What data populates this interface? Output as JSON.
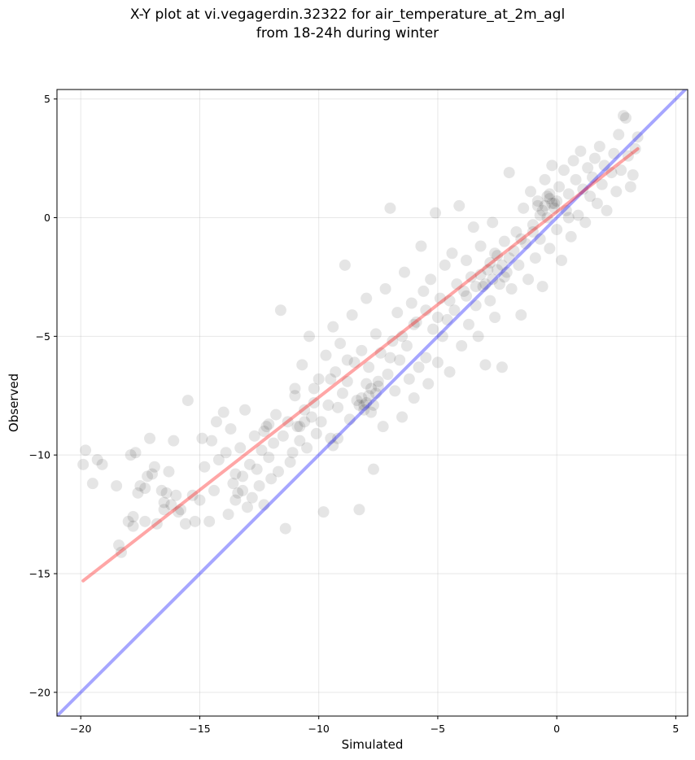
{
  "chart_data": {
    "type": "scatter",
    "title_line1": "X-Y plot at vi.vegagerdin.32322 for air_temperature_at_2m_agl",
    "title_line2": "from 18-24h during winter",
    "xlabel": "Simulated",
    "ylabel": "Observed",
    "xlim": [
      -21,
      5.5
    ],
    "ylim": [
      -21,
      5.4
    ],
    "xticks": [
      -20,
      -15,
      -10,
      -5,
      0,
      5
    ],
    "yticks": [
      -20,
      -15,
      -10,
      -5,
      0,
      5
    ],
    "xtick_labels": [
      "−20",
      "−15",
      "−10",
      "−5",
      "0",
      "5"
    ],
    "ytick_labels": [
      "−20",
      "−15",
      "−10",
      "−5",
      "0",
      "5"
    ],
    "grid": true,
    "point_color": "#000000",
    "point_alpha": 0.1,
    "regression_line": {
      "color": "#ff0000",
      "alpha": 0.35,
      "x": [
        -19.9,
        3.4
      ],
      "y": [
        -15.3,
        2.9
      ]
    },
    "identity_line": {
      "color": "#0000ff",
      "alpha": 0.35,
      "x": [
        -21,
        5.5
      ],
      "y": [
        -21,
        5.5
      ]
    },
    "points": [
      [
        -19.9,
        -10.4
      ],
      [
        -19.8,
        -9.8
      ],
      [
        -19.5,
        -11.2
      ],
      [
        -19.3,
        -10.2
      ],
      [
        -19.1,
        -10.4
      ],
      [
        -18.5,
        -11.3
      ],
      [
        -18.4,
        -13.8
      ],
      [
        -18.3,
        -14.1
      ],
      [
        -18.0,
        -12.8
      ],
      [
        -17.9,
        -10.0
      ],
      [
        -17.8,
        -12.6
      ],
      [
        -17.8,
        -13.0
      ],
      [
        -17.7,
        -9.9
      ],
      [
        -17.6,
        -11.6
      ],
      [
        -17.5,
        -11.3
      ],
      [
        -17.3,
        -12.8
      ],
      [
        -17.3,
        -11.4
      ],
      [
        -17.2,
        -10.9
      ],
      [
        -17.1,
        -9.3
      ],
      [
        -17.0,
        -10.8
      ],
      [
        -16.9,
        -10.5
      ],
      [
        -16.8,
        -12.9
      ],
      [
        -16.6,
        -11.5
      ],
      [
        -16.5,
        -12.0
      ],
      [
        -16.5,
        -12.3
      ],
      [
        -16.4,
        -11.6
      ],
      [
        -16.3,
        -10.7
      ],
      [
        -16.2,
        -12.1
      ],
      [
        -16.1,
        -9.4
      ],
      [
        -16.0,
        -11.7
      ],
      [
        -15.9,
        -12.4
      ],
      [
        -15.8,
        -12.3
      ],
      [
        -15.6,
        -12.9
      ],
      [
        -15.5,
        -7.7
      ],
      [
        -15.3,
        -11.7
      ],
      [
        -15.2,
        -12.8
      ],
      [
        -15.0,
        -11.9
      ],
      [
        -14.9,
        -9.3
      ],
      [
        -14.8,
        -10.5
      ],
      [
        -14.6,
        -12.8
      ],
      [
        -14.5,
        -9.4
      ],
      [
        -14.4,
        -11.5
      ],
      [
        -14.3,
        -8.6
      ],
      [
        -14.2,
        -10.2
      ],
      [
        -14.0,
        -8.2
      ],
      [
        -13.9,
        -9.9
      ],
      [
        -13.8,
        -12.5
      ],
      [
        -13.7,
        -8.9
      ],
      [
        -13.6,
        -11.2
      ],
      [
        -13.5,
        -10.8
      ],
      [
        -13.4,
        -11.6
      ],
      [
        -13.3,
        -9.7
      ],
      [
        -13.2,
        -10.9
      ],
      [
        -13.1,
        -8.1
      ],
      [
        -13.0,
        -12.2
      ],
      [
        -12.9,
        -10.4
      ],
      [
        -12.8,
        -11.8
      ],
      [
        -12.7,
        -9.2
      ],
      [
        -12.6,
        -10.6
      ],
      [
        -12.5,
        -11.3
      ],
      [
        -12.4,
        -9.8
      ],
      [
        -12.3,
        -12.1
      ],
      [
        -12.2,
        -8.8
      ],
      [
        -12.1,
        -10.1
      ],
      [
        -12.0,
        -11.0
      ],
      [
        -11.9,
        -9.5
      ],
      [
        -11.8,
        -8.3
      ],
      [
        -11.7,
        -10.7
      ],
      [
        -11.6,
        -3.9
      ],
      [
        -11.5,
        -9.2
      ],
      [
        -11.4,
        -13.1
      ],
      [
        -11.3,
        -8.6
      ],
      [
        -11.2,
        -10.3
      ],
      [
        -11.1,
        -9.9
      ],
      [
        -11.0,
        -7.5
      ],
      [
        -10.9,
        -8.8
      ],
      [
        -10.8,
        -9.4
      ],
      [
        -10.7,
        -6.2
      ],
      [
        -10.6,
        -8.1
      ],
      [
        -10.5,
        -9.7
      ],
      [
        -10.4,
        -5.0
      ],
      [
        -10.3,
        -8.4
      ],
      [
        -10.2,
        -7.2
      ],
      [
        -10.1,
        -9.1
      ],
      [
        -10.0,
        -6.8
      ],
      [
        -9.9,
        -8.6
      ],
      [
        -9.8,
        -12.4
      ],
      [
        -9.7,
        -5.8
      ],
      [
        -9.6,
        -7.9
      ],
      [
        -9.5,
        -9.3
      ],
      [
        -9.4,
        -4.6
      ],
      [
        -9.3,
        -6.5
      ],
      [
        -9.2,
        -8.0
      ],
      [
        -9.1,
        -5.3
      ],
      [
        -9.0,
        -7.4
      ],
      [
        -8.9,
        -2.0
      ],
      [
        -8.8,
        -6.9
      ],
      [
        -8.7,
        -8.5
      ],
      [
        -8.6,
        -4.1
      ],
      [
        -8.5,
        -6.1
      ],
      [
        -8.4,
        -7.7
      ],
      [
        -8.3,
        -12.3
      ],
      [
        -8.2,
        -5.6
      ],
      [
        -8.1,
        -7.9
      ],
      [
        -8.0,
        -3.4
      ],
      [
        -7.9,
        -6.3
      ],
      [
        -7.8,
        -8.2
      ],
      [
        -7.7,
        -10.6
      ],
      [
        -7.6,
        -4.9
      ],
      [
        -7.5,
        -7.1
      ],
      [
        -7.4,
        -5.7
      ],
      [
        -7.3,
        -8.8
      ],
      [
        -7.2,
        -3.0
      ],
      [
        -7.1,
        -6.6
      ],
      [
        -7.0,
        0.4
      ],
      [
        -6.9,
        -5.2
      ],
      [
        -6.8,
        -7.3
      ],
      [
        -6.7,
        -4.0
      ],
      [
        -6.6,
        -6.0
      ],
      [
        -6.5,
        -8.4
      ],
      [
        -6.4,
        -2.3
      ],
      [
        -6.3,
        -5.4
      ],
      [
        -6.2,
        -6.8
      ],
      [
        -6.1,
        -3.6
      ],
      [
        -6.0,
        -7.6
      ],
      [
        -5.9,
        -4.4
      ],
      [
        -5.8,
        -6.3
      ],
      [
        -5.7,
        -1.2
      ],
      [
        -5.6,
        -3.1
      ],
      [
        -5.5,
        -5.9
      ],
      [
        -5.4,
        -7.0
      ],
      [
        -5.3,
        -2.6
      ],
      [
        -5.2,
        -4.7
      ],
      [
        -5.1,
        0.2
      ],
      [
        -5.0,
        -6.1
      ],
      [
        -4.9,
        -3.4
      ],
      [
        -4.8,
        -5.0
      ],
      [
        -4.7,
        -2.0
      ],
      [
        -4.6,
        -4.3
      ],
      [
        -4.5,
        -6.5
      ],
      [
        -4.4,
        -1.5
      ],
      [
        -4.3,
        -3.9
      ],
      [
        -4.2,
        -2.8
      ],
      [
        -4.1,
        0.5
      ],
      [
        -4.0,
        -5.4
      ],
      [
        -3.9,
        -3.1
      ],
      [
        -3.8,
        -1.8
      ],
      [
        -3.7,
        -4.5
      ],
      [
        -3.6,
        -2.5
      ],
      [
        -3.5,
        -0.4
      ],
      [
        -3.4,
        -3.7
      ],
      [
        -3.3,
        -5.0
      ],
      [
        -3.2,
        -1.2
      ],
      [
        -3.1,
        -2.9
      ],
      [
        -3.0,
        -6.2
      ],
      [
        -2.9,
        -2.2
      ],
      [
        -2.8,
        -3.5
      ],
      [
        -2.7,
        -0.2
      ],
      [
        -2.6,
        -4.2
      ],
      [
        -2.5,
        -1.6
      ],
      [
        -2.4,
        -2.8
      ],
      [
        -2.3,
        -6.3
      ],
      [
        -2.2,
        -1.0
      ],
      [
        -2.1,
        -2.3
      ],
      [
        -2.0,
        1.9
      ],
      [
        -1.9,
        -3.0
      ],
      [
        -1.8,
        -1.4
      ],
      [
        -1.7,
        -0.6
      ],
      [
        -1.6,
        -2.0
      ],
      [
        -1.5,
        -4.1
      ],
      [
        -1.4,
        0.4
      ],
      [
        -1.3,
        -1.1
      ],
      [
        -1.2,
        -2.6
      ],
      [
        -1.1,
        1.1
      ],
      [
        -1.0,
        -0.3
      ],
      [
        -0.9,
        -1.7
      ],
      [
        -0.8,
        0.7
      ],
      [
        -0.7,
        -0.9
      ],
      [
        -0.6,
        -2.9
      ],
      [
        -0.5,
        1.6
      ],
      [
        -0.4,
        0.0
      ],
      [
        -0.3,
        -1.3
      ],
      [
        -0.2,
        2.2
      ],
      [
        -0.1,
        0.6
      ],
      [
        0.0,
        -0.5
      ],
      [
        0.1,
        1.3
      ],
      [
        0.2,
        -1.8
      ],
      [
        0.3,
        2.0
      ],
      [
        0.4,
        0.3
      ],
      [
        0.5,
        1.0
      ],
      [
        0.6,
        -0.8
      ],
      [
        0.7,
        2.4
      ],
      [
        0.8,
        1.6
      ],
      [
        0.9,
        0.1
      ],
      [
        1.0,
        2.8
      ],
      [
        1.1,
        1.2
      ],
      [
        1.2,
        -0.2
      ],
      [
        1.3,
        2.1
      ],
      [
        1.4,
        0.9
      ],
      [
        1.5,
        1.7
      ],
      [
        1.6,
        2.5
      ],
      [
        1.7,
        0.6
      ],
      [
        1.8,
        3.0
      ],
      [
        1.9,
        1.4
      ],
      [
        2.0,
        2.2
      ],
      [
        2.1,
        0.3
      ],
      [
        2.3,
        1.9
      ],
      [
        2.4,
        2.7
      ],
      [
        2.5,
        1.1
      ],
      [
        2.6,
        3.5
      ],
      [
        2.7,
        2.0
      ],
      [
        2.8,
        4.3
      ],
      [
        2.9,
        4.2
      ],
      [
        3.0,
        2.6
      ],
      [
        3.1,
        1.3
      ],
      [
        3.2,
        1.8
      ],
      [
        3.4,
        3.4
      ],
      [
        3.3,
        2.9
      ],
      [
        -8.0,
        -7.8
      ],
      [
        -7.9,
        -7.5
      ],
      [
        -8.1,
        -8.1
      ],
      [
        -7.8,
        -7.2
      ],
      [
        -8.2,
        -7.6
      ],
      [
        -7.7,
        -7.9
      ],
      [
        -8.0,
        -7.0
      ],
      [
        -7.6,
        -7.4
      ],
      [
        -8.3,
        -7.9
      ],
      [
        -7.5,
        -6.9
      ],
      [
        -2.5,
        -2.2
      ],
      [
        -2.7,
        -2.6
      ],
      [
        -2.3,
        -2.0
      ],
      [
        -3.0,
        -2.8
      ],
      [
        -2.2,
        -2.5
      ],
      [
        -2.8,
        -1.9
      ],
      [
        -3.2,
        -2.4
      ],
      [
        -2.0,
        -1.7
      ],
      [
        -2.6,
        -1.5
      ],
      [
        -3.4,
        -2.9
      ],
      [
        -0.5,
        0.5
      ],
      [
        -0.3,
        0.8
      ],
      [
        -0.6,
        0.3
      ],
      [
        -0.2,
        0.6
      ],
      [
        -0.4,
        0.9
      ],
      [
        -0.7,
        0.1
      ],
      [
        -0.1,
        0.4
      ],
      [
        0.0,
        0.7
      ],
      [
        -0.8,
        0.5
      ],
      [
        -0.3,
        1.0
      ],
      [
        -9.2,
        -9.3
      ],
      [
        -9.4,
        -9.6
      ],
      [
        -10.6,
        -8.6
      ],
      [
        -10.8,
        -8.8
      ],
      [
        -12.3,
        -9.0
      ],
      [
        -12.1,
        -8.7
      ],
      [
        -13.5,
        -11.9
      ],
      [
        -13.2,
        -11.5
      ],
      [
        -4.5,
        -3.5
      ],
      [
        -5.0,
        -4.2
      ],
      [
        -6.5,
        -5.0
      ],
      [
        -7.0,
        -5.9
      ],
      [
        -6.0,
        -4.5
      ],
      [
        -5.5,
        -3.9
      ],
      [
        -9.5,
        -6.8
      ],
      [
        -8.8,
        -6.0
      ],
      [
        -11.0,
        -7.2
      ],
      [
        -10.2,
        -7.8
      ],
      [
        -3.8,
        -3.3
      ],
      [
        -1.0,
        -0.6
      ],
      [
        -1.5,
        -0.9
      ],
      [
        0.5,
        0.0
      ]
    ]
  }
}
